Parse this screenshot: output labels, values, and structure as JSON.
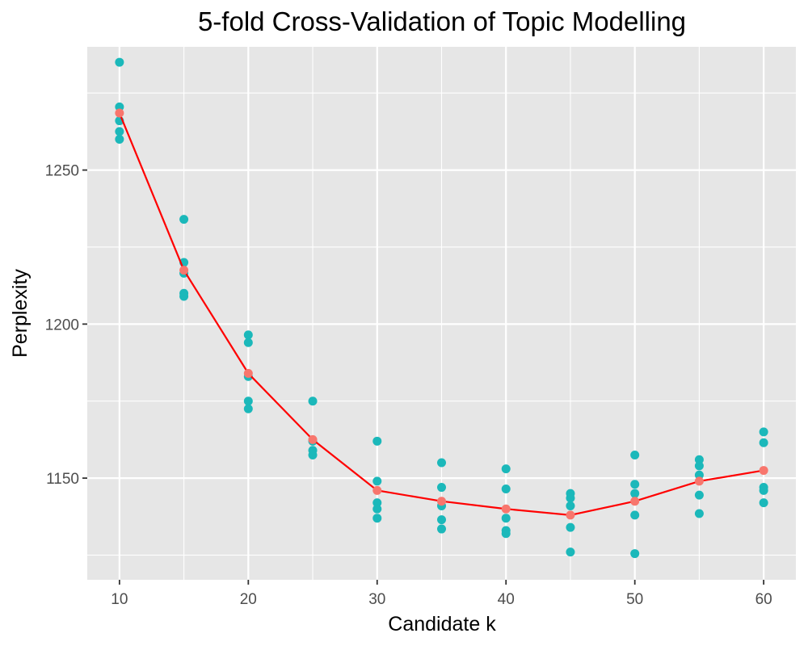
{
  "chart_data": {
    "type": "scatter",
    "title": "5-fold Cross-Validation of Topic Modelling",
    "xlabel": "Candidate k",
    "ylabel": "Perplexity",
    "xlim": [
      7.5,
      62.5
    ],
    "ylim": [
      1117,
      1290
    ],
    "x_ticks": [
      10,
      20,
      30,
      40,
      50,
      60
    ],
    "y_ticks": [
      1150,
      1200,
      1250
    ],
    "grid": true,
    "legend": "none",
    "colors": {
      "fold_points": "#1bb8ba",
      "mean_points": "#f8766d",
      "mean_line": "#ff0000",
      "panel_bg": "#e6e6e6",
      "grid": "#ffffff"
    },
    "series": [
      {
        "kind": "points",
        "points": [
          {
            "x": 10,
            "y": 1285
          },
          {
            "x": 10,
            "y": 1270.5
          },
          {
            "x": 10,
            "y": 1266
          },
          {
            "x": 10,
            "y": 1262.5
          },
          {
            "x": 10,
            "y": 1260
          },
          {
            "x": 15,
            "y": 1234
          },
          {
            "x": 15,
            "y": 1220
          },
          {
            "x": 15,
            "y": 1216.5
          },
          {
            "x": 15,
            "y": 1210
          },
          {
            "x": 15,
            "y": 1209
          },
          {
            "x": 20,
            "y": 1196.5
          },
          {
            "x": 20,
            "y": 1194
          },
          {
            "x": 20,
            "y": 1183
          },
          {
            "x": 20,
            "y": 1175
          },
          {
            "x": 20,
            "y": 1172.5
          },
          {
            "x": 25,
            "y": 1175
          },
          {
            "x": 25,
            "y": 1162
          },
          {
            "x": 25,
            "y": 1159
          },
          {
            "x": 25,
            "y": 1157.5
          },
          {
            "x": 30,
            "y": 1162
          },
          {
            "x": 30,
            "y": 1149
          },
          {
            "x": 30,
            "y": 1142
          },
          {
            "x": 30,
            "y": 1140
          },
          {
            "x": 30,
            "y": 1137
          },
          {
            "x": 35,
            "y": 1155
          },
          {
            "x": 35,
            "y": 1147
          },
          {
            "x": 35,
            "y": 1141
          },
          {
            "x": 35,
            "y": 1136.5
          },
          {
            "x": 35,
            "y": 1133.5
          },
          {
            "x": 40,
            "y": 1153
          },
          {
            "x": 40,
            "y": 1146.5
          },
          {
            "x": 40,
            "y": 1137
          },
          {
            "x": 40,
            "y": 1133
          },
          {
            "x": 40,
            "y": 1132
          },
          {
            "x": 45,
            "y": 1145
          },
          {
            "x": 45,
            "y": 1143.5
          },
          {
            "x": 45,
            "y": 1141
          },
          {
            "x": 45,
            "y": 1134
          },
          {
            "x": 45,
            "y": 1126
          },
          {
            "x": 50,
            "y": 1157.5
          },
          {
            "x": 50,
            "y": 1148
          },
          {
            "x": 50,
            "y": 1145
          },
          {
            "x": 50,
            "y": 1138
          },
          {
            "x": 50,
            "y": 1125.5
          },
          {
            "x": 55,
            "y": 1156
          },
          {
            "x": 55,
            "y": 1154
          },
          {
            "x": 55,
            "y": 1151
          },
          {
            "x": 55,
            "y": 1144.5
          },
          {
            "x": 55,
            "y": 1138.5
          },
          {
            "x": 60,
            "y": 1165
          },
          {
            "x": 60,
            "y": 1161.5
          },
          {
            "x": 60,
            "y": 1147
          },
          {
            "x": 60,
            "y": 1146
          },
          {
            "x": 60,
            "y": 1142
          }
        ]
      },
      {
        "kind": "mean",
        "x": [
          10,
          15,
          20,
          25,
          30,
          35,
          40,
          45,
          50,
          55,
          60
        ],
        "y": [
          1268.5,
          1217.5,
          1184,
          1162.5,
          1146,
          1142.5,
          1140,
          1138,
          1142.5,
          1149,
          1152.5
        ]
      }
    ]
  }
}
